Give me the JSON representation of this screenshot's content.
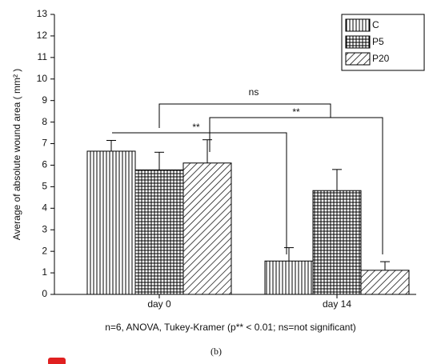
{
  "chart_data": {
    "type": "bar",
    "y_label": "Average of absolute wound area ( mm² )",
    "categories": [
      "day 0",
      "day 14"
    ],
    "series": [
      {
        "name": "C",
        "color": "#000000",
        "pattern": "vertical",
        "values": [
          6.65,
          1.55
        ],
        "errors": [
          0.5,
          0.62
        ]
      },
      {
        "name": "P5",
        "color": "#000000",
        "pattern": "grid",
        "values": [
          5.78,
          4.82
        ],
        "errors": [
          0.82,
          0.98
        ]
      },
      {
        "name": "P20",
        "color": "#000000",
        "pattern": "diagonal",
        "values": [
          6.1,
          1.12
        ],
        "errors": [
          1.08,
          0.4
        ]
      }
    ],
    "ylim": [
      0,
      13
    ],
    "yticks": [
      0,
      1,
      2,
      3,
      4,
      5,
      6,
      7,
      8,
      9,
      10,
      11,
      12,
      13
    ],
    "grid": false,
    "legend": "top-right",
    "annotations": [
      "ns",
      "**",
      "**"
    ],
    "footnote": "n=6, ANOVA, Tukey-Kramer (p** < 0.01; ns=not significant)",
    "caption": "(b)"
  }
}
